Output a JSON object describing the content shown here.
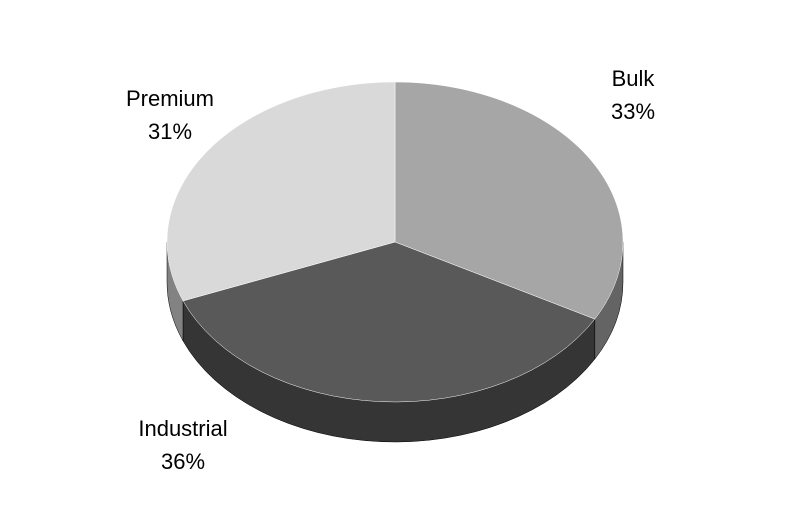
{
  "chart_data": {
    "type": "pie3d",
    "categories": [
      "Bulk",
      "Industrial",
      "Premium"
    ],
    "values": [
      33,
      36,
      31
    ],
    "value_labels": [
      "33%",
      "36%",
      "31%"
    ],
    "colors": [
      "#a6a6a6",
      "#595959",
      "#d9d9d9"
    ]
  }
}
